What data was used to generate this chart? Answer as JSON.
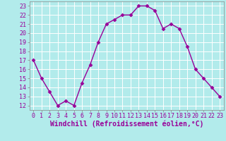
{
  "x": [
    0,
    1,
    2,
    3,
    4,
    5,
    6,
    7,
    8,
    9,
    10,
    11,
    12,
    13,
    14,
    15,
    16,
    17,
    18,
    19,
    20,
    21,
    22,
    23
  ],
  "y": [
    17,
    15,
    13.5,
    12,
    12.5,
    12,
    14.5,
    16.5,
    19,
    21,
    21.5,
    22,
    22,
    23,
    23,
    22.5,
    20.5,
    21,
    20.5,
    18.5,
    16,
    15,
    14,
    13
  ],
  "line_color": "#990099",
  "marker": "D",
  "marker_size": 2.5,
  "line_width": 1.0,
  "xlabel": "Windchill (Refroidissement éolien,°C)",
  "xlabel_fontsize": 7,
  "xlim": [
    -0.5,
    23.5
  ],
  "ylim": [
    11.5,
    23.5
  ],
  "yticks": [
    12,
    13,
    14,
    15,
    16,
    17,
    18,
    19,
    20,
    21,
    22,
    23
  ],
  "xticks": [
    0,
    1,
    2,
    3,
    4,
    5,
    6,
    7,
    8,
    9,
    10,
    11,
    12,
    13,
    14,
    15,
    16,
    17,
    18,
    19,
    20,
    21,
    22,
    23
  ],
  "background_color": "#b2ebeb",
  "grid_color": "#ffffff",
  "tick_fontsize": 6,
  "fig_width": 3.2,
  "fig_height": 2.0,
  "dpi": 100
}
